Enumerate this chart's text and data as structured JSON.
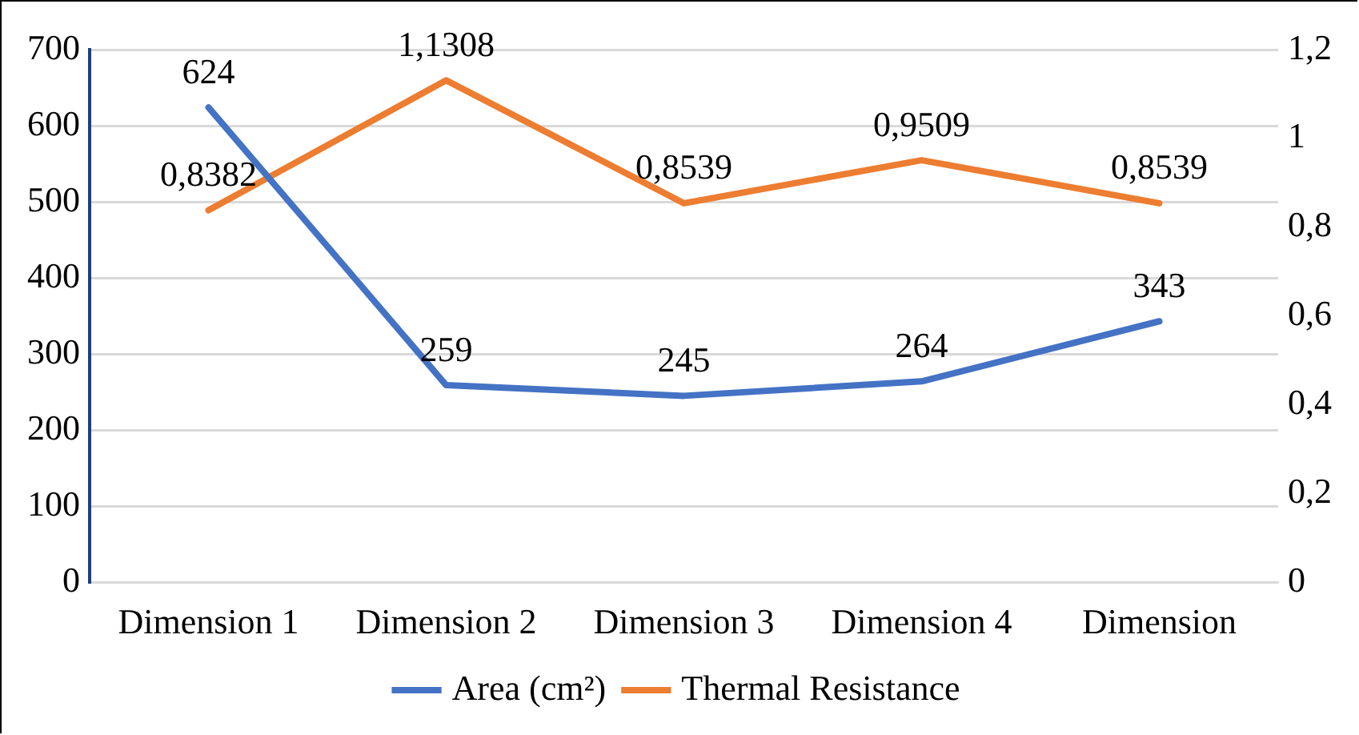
{
  "chart_data": {
    "type": "line",
    "categories": [
      "Dimension 1",
      "Dimension 2",
      "Dimension 3",
      "Dimension 4",
      "Dimension"
    ],
    "series": [
      {
        "name": "Area (cm²)",
        "color": "#4472c4",
        "values": [
          624,
          259,
          245,
          264,
          343
        ],
        "value_labels": [
          "624",
          "259",
          "245",
          "264",
          "343"
        ]
      },
      {
        "name": "Thermal Resistance",
        "color": "#ed7d31",
        "axis": "y2",
        "values": [
          0.8382,
          1.1308,
          0.8539,
          0.9509,
          0.8539
        ],
        "value_labels": [
          "0,8382",
          "1,1308",
          "0,8539",
          "0,9509",
          "0,8539"
        ]
      }
    ],
    "ylim": [
      0,
      700
    ],
    "yticks": [
      0,
      100,
      200,
      300,
      400,
      500,
      600,
      700
    ],
    "y2lim": [
      0,
      1.2
    ],
    "y2ticks": [
      0,
      {
        "value": 0.2,
        "label": "0,2"
      },
      {
        "value": 0.4,
        "label": "0,4"
      },
      {
        "value": 0.6,
        "label": "0,6"
      },
      {
        "value": 0.8,
        "label": "0,8"
      },
      1,
      {
        "value": 1.2,
        "label": "1,2"
      }
    ],
    "grid": "y",
    "legend": "bottom",
    "marker": "none",
    "line_style": "solid"
  }
}
